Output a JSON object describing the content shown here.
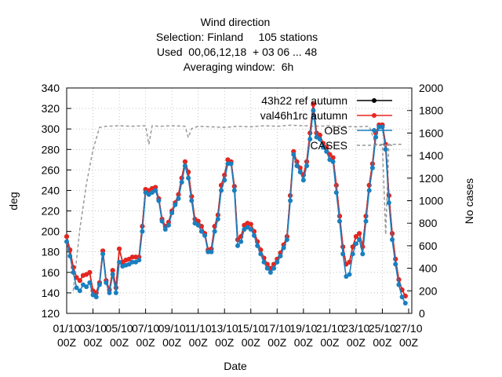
{
  "chart_data": {
    "type": "line",
    "title": "Wind direction",
    "subtitle": [
      "Selection: Finland     105 stations",
      "Used  00,06,12,18  + 03 06 ... 48",
      "Averaging window:  6h"
    ],
    "xlabel": "Date",
    "ylabel": "deg",
    "y2label": "No cases",
    "xlim": [
      "01/10 00Z",
      "27/10 00Z"
    ],
    "xticks": [
      "01/10 00Z",
      "03/10 00Z",
      "05/10 00Z",
      "07/10 00Z",
      "09/10 00Z",
      "11/10 00Z",
      "13/10 00Z",
      "15/10 00Z",
      "17/10 00Z",
      "19/10 00Z",
      "21/10 00Z",
      "23/10 00Z",
      "25/10 00Z",
      "27/10 00Z"
    ],
    "ylim": [
      120,
      340
    ],
    "yticks": [
      120,
      140,
      160,
      180,
      200,
      220,
      240,
      260,
      280,
      300,
      320,
      340
    ],
    "y2lim": [
      0,
      2000
    ],
    "y2ticks": [
      0,
      200,
      400,
      600,
      800,
      1000,
      1200,
      1400,
      1600,
      1800,
      2000
    ],
    "grid": true,
    "legend": "top-right",
    "x": [
      "01/10 00Z",
      "01/10 06Z",
      "01/10 12Z",
      "01/10 18Z",
      "02/10 00Z",
      "02/10 06Z",
      "02/10 12Z",
      "02/10 18Z",
      "03/10 00Z",
      "03/10 06Z",
      "03/10 12Z",
      "03/10 18Z",
      "04/10 00Z",
      "04/10 06Z",
      "04/10 12Z",
      "04/10 18Z",
      "05/10 00Z",
      "05/10 06Z",
      "05/10 12Z",
      "05/10 18Z",
      "06/10 00Z",
      "06/10 06Z",
      "06/10 12Z",
      "06/10 18Z",
      "07/10 00Z",
      "07/10 06Z",
      "07/10 12Z",
      "07/10 18Z",
      "08/10 00Z",
      "08/10 06Z",
      "08/10 12Z",
      "08/10 18Z",
      "09/10 00Z",
      "09/10 06Z",
      "09/10 12Z",
      "09/10 18Z",
      "10/10 00Z",
      "10/10 06Z",
      "10/10 12Z",
      "10/10 18Z",
      "11/10 00Z",
      "11/10 06Z",
      "11/10 12Z",
      "11/10 18Z",
      "12/10 00Z",
      "12/10 06Z",
      "12/10 12Z",
      "12/10 18Z",
      "13/10 00Z",
      "13/10 06Z",
      "13/10 12Z",
      "13/10 18Z",
      "14/10 00Z",
      "14/10 06Z",
      "14/10 12Z",
      "14/10 18Z",
      "15/10 00Z",
      "15/10 06Z",
      "15/10 12Z",
      "15/10 18Z",
      "16/10 00Z",
      "16/10 06Z",
      "16/10 12Z",
      "16/10 18Z",
      "17/10 00Z",
      "17/10 06Z",
      "17/10 12Z",
      "17/10 18Z",
      "18/10 00Z",
      "18/10 06Z",
      "18/10 12Z",
      "18/10 18Z",
      "19/10 00Z",
      "19/10 06Z",
      "19/10 12Z",
      "19/10 18Z",
      "20/10 00Z",
      "20/10 06Z",
      "20/10 12Z",
      "20/10 18Z",
      "21/10 00Z",
      "21/10 06Z",
      "21/10 12Z",
      "21/10 18Z",
      "22/10 00Z",
      "22/10 06Z",
      "22/10 12Z",
      "22/10 18Z",
      "23/10 00Z",
      "23/10 06Z",
      "23/10 12Z",
      "23/10 18Z",
      "24/10 00Z",
      "24/10 06Z",
      "24/10 12Z",
      "24/10 18Z",
      "25/10 00Z",
      "25/10 06Z",
      "25/10 12Z",
      "25/10 18Z",
      "26/10 00Z",
      "26/10 06Z",
      "26/10 12Z",
      "26/10 18Z"
    ],
    "series": [
      {
        "name": "43h22 ref autumn",
        "color": "#000000",
        "marker": true,
        "dash": false,
        "values": [
          195,
          182,
          165,
          155,
          152,
          157,
          158,
          160,
          142,
          140,
          150,
          181,
          152,
          143,
          162,
          145,
          183,
          170,
          172,
          173,
          175,
          175,
          175,
          205,
          241,
          240,
          242,
          243,
          232,
          212,
          205,
          209,
          220,
          228,
          236,
          252,
          268,
          258,
          234,
          212,
          210,
          205,
          198,
          182,
          183,
          205,
          216,
          245,
          255,
          270,
          268,
          244,
          192,
          195,
          206,
          208,
          207,
          200,
          190,
          182,
          174,
          168,
          164,
          168,
          173,
          179,
          187,
          195,
          235,
          278,
          268,
          262,
          255,
          268,
          296,
          324,
          296,
          294,
          286,
          282,
          275,
          272,
          245,
          215,
          185,
          168,
          170,
          185,
          195,
          198,
          185,
          215,
          245,
          266,
          296,
          304,
          304,
          285,
          235,
          198,
          173,
          153,
          143,
          137
        ]
      },
      {
        "name": "val46h1rc autumn",
        "color": "#e8251f",
        "marker": true,
        "dash": false,
        "values": [
          195,
          182,
          165,
          155,
          152,
          157,
          158,
          160,
          142,
          140,
          150,
          181,
          152,
          143,
          162,
          145,
          183,
          170,
          172,
          173,
          175,
          175,
          175,
          205,
          241,
          240,
          242,
          243,
          232,
          212,
          205,
          209,
          220,
          228,
          236,
          252,
          268,
          258,
          234,
          212,
          210,
          205,
          198,
          182,
          183,
          205,
          216,
          245,
          255,
          270,
          268,
          244,
          192,
          195,
          206,
          208,
          207,
          200,
          190,
          182,
          174,
          168,
          164,
          168,
          173,
          179,
          187,
          195,
          235,
          278,
          268,
          262,
          255,
          268,
          296,
          324,
          296,
          294,
          286,
          282,
          275,
          272,
          245,
          215,
          185,
          168,
          170,
          185,
          195,
          198,
          185,
          215,
          245,
          266,
          296,
          304,
          304,
          285,
          235,
          198,
          173,
          153,
          143,
          137
        ]
      },
      {
        "name": "OBS",
        "color": "#1a7fbf",
        "marker": true,
        "dash": false,
        "values": [
          190,
          176,
          160,
          145,
          142,
          148,
          146,
          150,
          138,
          136,
          148,
          178,
          150,
          140,
          158,
          140,
          170,
          166,
          167,
          168,
          170,
          170,
          172,
          200,
          238,
          236,
          238,
          240,
          230,
          210,
          202,
          206,
          218,
          226,
          232,
          248,
          264,
          252,
          230,
          208,
          206,
          200,
          196,
          180,
          180,
          200,
          212,
          240,
          250,
          266,
          266,
          240,
          186,
          190,
          202,
          204,
          202,
          196,
          186,
          178,
          170,
          164,
          160,
          164,
          170,
          176,
          184,
          192,
          230,
          275,
          264,
          258,
          250,
          264,
          290,
          318,
          292,
          290,
          282,
          278,
          270,
          268,
          238,
          210,
          178,
          156,
          158,
          178,
          188,
          192,
          178,
          210,
          240,
          262,
          292,
          302,
          302,
          280,
          228,
          192,
          168,
          148,
          136,
          130
        ]
      },
      {
        "name": "CASES",
        "color": "#999999",
        "marker": false,
        "dash": true,
        "axis": "y2",
        "x": [
          "01/10 12Z",
          "02/10 00Z",
          "02/10 12Z",
          "03/10 00Z",
          "03/10 12Z",
          "04/10 00Z",
          "05/10 00Z",
          "06/10 00Z",
          "07/10 00Z",
          "07/10 06Z",
          "07/10 12Z",
          "08/10 00Z",
          "09/10 00Z",
          "10/10 00Z",
          "10/10 06Z",
          "10/10 12Z",
          "11/10 00Z",
          "12/10 00Z",
          "13/10 00Z",
          "14/10 00Z",
          "15/10 00Z",
          "16/10 00Z",
          "17/10 00Z",
          "18/10 00Z",
          "19/10 00Z",
          "20/10 00Z",
          "21/10 00Z",
          "22/10 00Z",
          "23/10 00Z",
          "24/10 00Z",
          "24/10 12Z",
          "25/10 00Z",
          "25/10 06Z",
          "25/10 12Z",
          "26/10 00Z",
          "26/10 12Z"
        ],
        "values": [
          200,
          750,
          1150,
          1450,
          1650,
          1660,
          1665,
          1660,
          1665,
          1500,
          1665,
          1660,
          1665,
          1660,
          1560,
          1640,
          1660,
          1655,
          1650,
          1660,
          1655,
          1665,
          1660,
          1670,
          1665,
          1660,
          1665,
          1660,
          1655,
          1660,
          1500,
          1500,
          700,
          1500,
          1500,
          1500
        ]
      }
    ]
  }
}
